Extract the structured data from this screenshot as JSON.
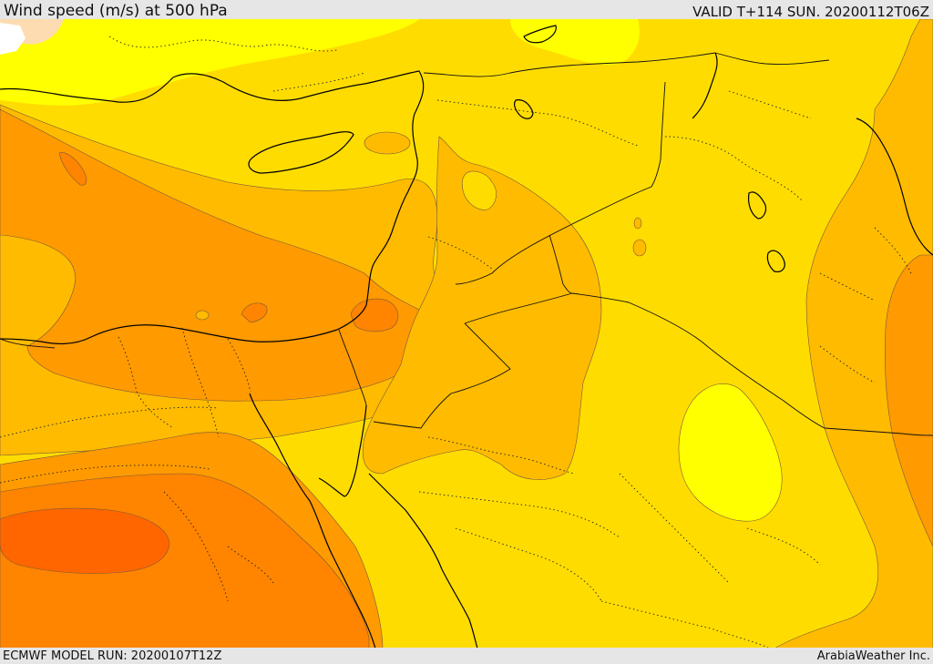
{
  "header": {
    "title": "Wind speed (m/s) at 500 hPa",
    "valid_time": "VALID T+114 SUN. 20200112T06Z"
  },
  "footer": {
    "model_run": "ECMWF MODEL RUN: 20200107T12Z",
    "credit": "ArabiaWeather Inc."
  },
  "map": {
    "region": "Eastern Mediterranean and Middle East",
    "colors": {
      "lowest": "#ffffff",
      "very_low": "#fcdcb0",
      "low": "#ffff00",
      "medium": "#ffdc00",
      "medium_high": "#ffbb00",
      "high": "#ff9a00",
      "higher": "#ff8400",
      "highest": "#ff6600",
      "coastline": "#000000",
      "borders": "#111111",
      "contour": "#7a5a3a"
    }
  }
}
